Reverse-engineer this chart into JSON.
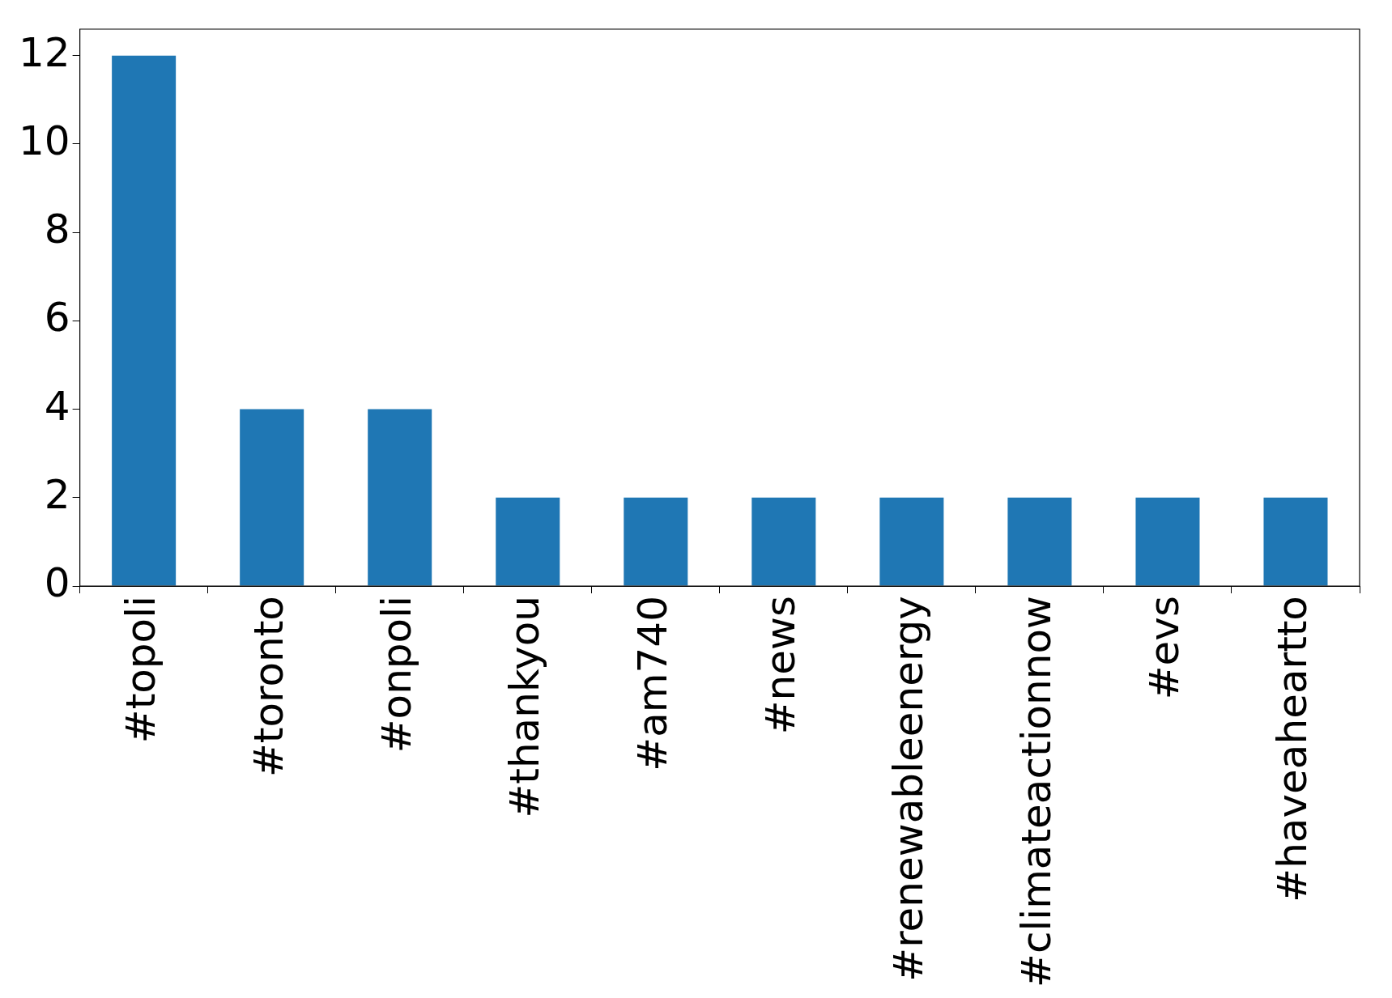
{
  "chart_data": {
    "type": "bar",
    "categories": [
      "#topoli",
      "#toronto",
      "#onpoli",
      "#thankyou",
      "#am740",
      "#news",
      "#renewableenergy",
      "#climateactionnow",
      "#evs",
      "#haveaheartto"
    ],
    "values": [
      12,
      4,
      4,
      2,
      2,
      2,
      2,
      2,
      2,
      2
    ],
    "color": "#1f77b4",
    "ylim": [
      0,
      12.6
    ],
    "yticks": [
      0,
      2,
      4,
      6,
      8,
      10,
      12
    ]
  }
}
